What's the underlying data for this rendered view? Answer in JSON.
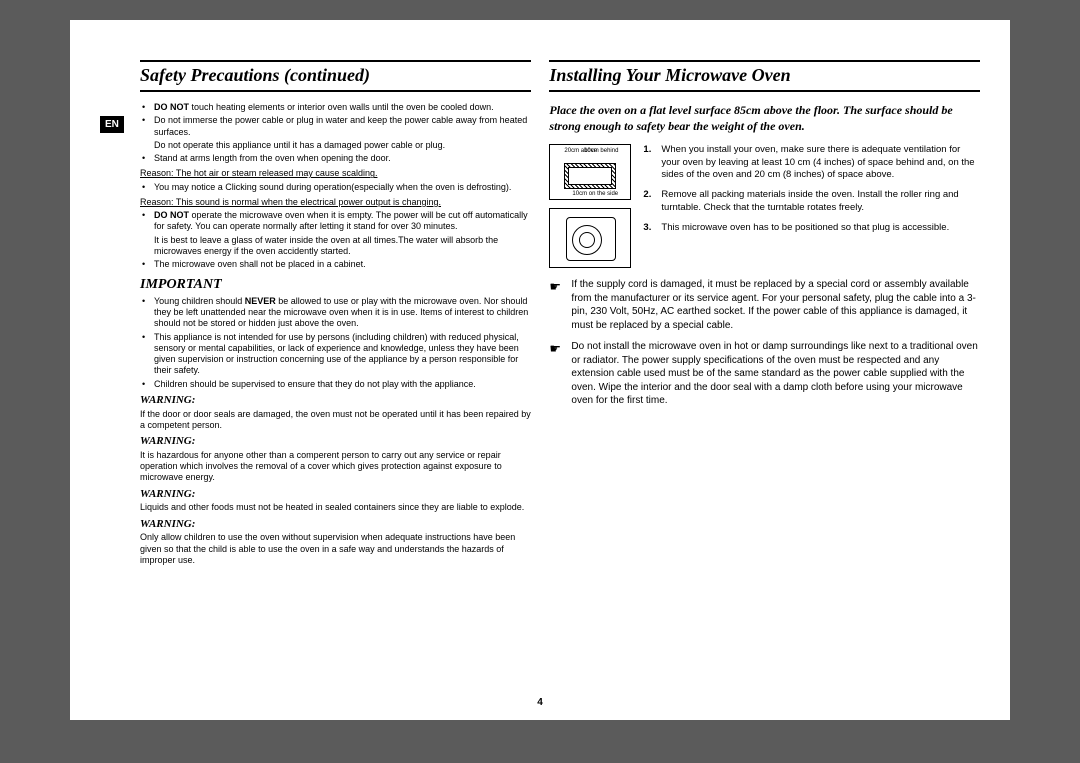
{
  "page_number": "4",
  "lang_badge": "EN",
  "left": {
    "title": "Safety Precautions  (continued)",
    "bullets1": [
      {
        "html": "<b>DO NOT</b> touch heating elements or interior oven walls until the oven be cooled down."
      },
      {
        "html": "Do not immerse the power cable or plug in water and keep the power cable away from heated surfaces.",
        "sub": "Do not operate this appliance until it has a damaged power cable or plug."
      },
      {
        "html": "Stand at arms length from the oven when opening the door."
      }
    ],
    "reason1": "Reason: The hot air or steam released may cause scalding.",
    "bullets2": [
      {
        "html": "You may notice a Clicking sound during operation(especially when the oven is defrosting)."
      }
    ],
    "reason2": "Reason: This sound is normal when the electrical power output is changing.",
    "bullets3": [
      {
        "html": "<b>DO NOT</b> operate the microwave oven when it is empty. The power will be cut off automatically for safety. You can operate normally after letting it stand for over 30 minutes.",
        "sub": "It is best to leave a glass of water inside the oven at all times.The water will absorb the microwaves energy if the oven accidently started."
      },
      {
        "html": "The microwave oven shall not be placed in a cabinet."
      }
    ],
    "important_label": "IMPORTANT",
    "important_bullets": [
      {
        "html": "Young children should <b>NEVER</b> be allowed to use or play with the microwave oven. Nor should they be left unattended near the microwave oven when it is in use. Items of interest to children should not be stored or hidden just above the oven."
      },
      {
        "html": "This appliance is not intended for use by persons (including children) with reduced physical, sensory or mental capabilities, or lack of experience and knowledge, unless they have been given supervision or instruction concerning use of the appliance by a person responsible for their safety."
      },
      {
        "html": "Children should be supervised to ensure that they do not play with the appliance."
      }
    ],
    "warnings": [
      {
        "label": "WARNING:",
        "text": "If the door or door seals are damaged, the oven must not be operated until it has been repaired by a competent person."
      },
      {
        "label": "WARNING:",
        "text": "It is hazardous for anyone other than a comperent person to carry out any service or repair operation which involves the removal of a cover which gives protection against exposure to microwave energy."
      },
      {
        "label": "WARNING:",
        "text": "Liquids and other foods must not be heated in sealed containers since they are liable to explode."
      },
      {
        "label": "WARNING:",
        "text": "Only allow children to use the oven without supervision when adequate instructions have been given so that the child is able to use the oven in a safe way and understands the hazards of improper use."
      }
    ]
  },
  "right": {
    "title": "Installing Your Microwave Oven",
    "intro": "Place the oven on a flat level surface 85cm above the floor. The surface should be strong enough to safety bear the weight of the oven.",
    "diagram1": {
      "above": "20cm above",
      "behind": "10cm behind",
      "side": "10cm on the side"
    },
    "steps": [
      {
        "n": "1.",
        "text": "When you install your oven, make sure there is adequate ventilation for your oven by leaving at least 10 cm (4 inches) of space behind and, on the sides of the oven and 20 cm (8 inches) of space above."
      },
      {
        "n": "2.",
        "text": "Remove all packing materials inside the oven. Install the roller ring and turntable. Check that the turntable rotates freely."
      },
      {
        "n": "3.",
        "text": "This microwave oven has to be positioned so that plug is accessible."
      }
    ],
    "pointers": [
      "If the supply cord is damaged, it must be replaced by a special cord or assembly available from the manufacturer or its service agent.\nFor your personal safety, plug the cable into a 3-pin, 230 Volt, 50Hz, AC earthed socket. If the power cable of this appliance is damaged, it must be replaced by a special cable.",
      "Do not install the microwave oven in hot or damp surroundings like next to a traditional oven or radiator. The power supply specifications of the oven must be respected and any extension cable used must be of the same standard as the power cable supplied with the oven. Wipe the interior and the door seal with a damp cloth before using your microwave oven for the first time."
    ]
  }
}
